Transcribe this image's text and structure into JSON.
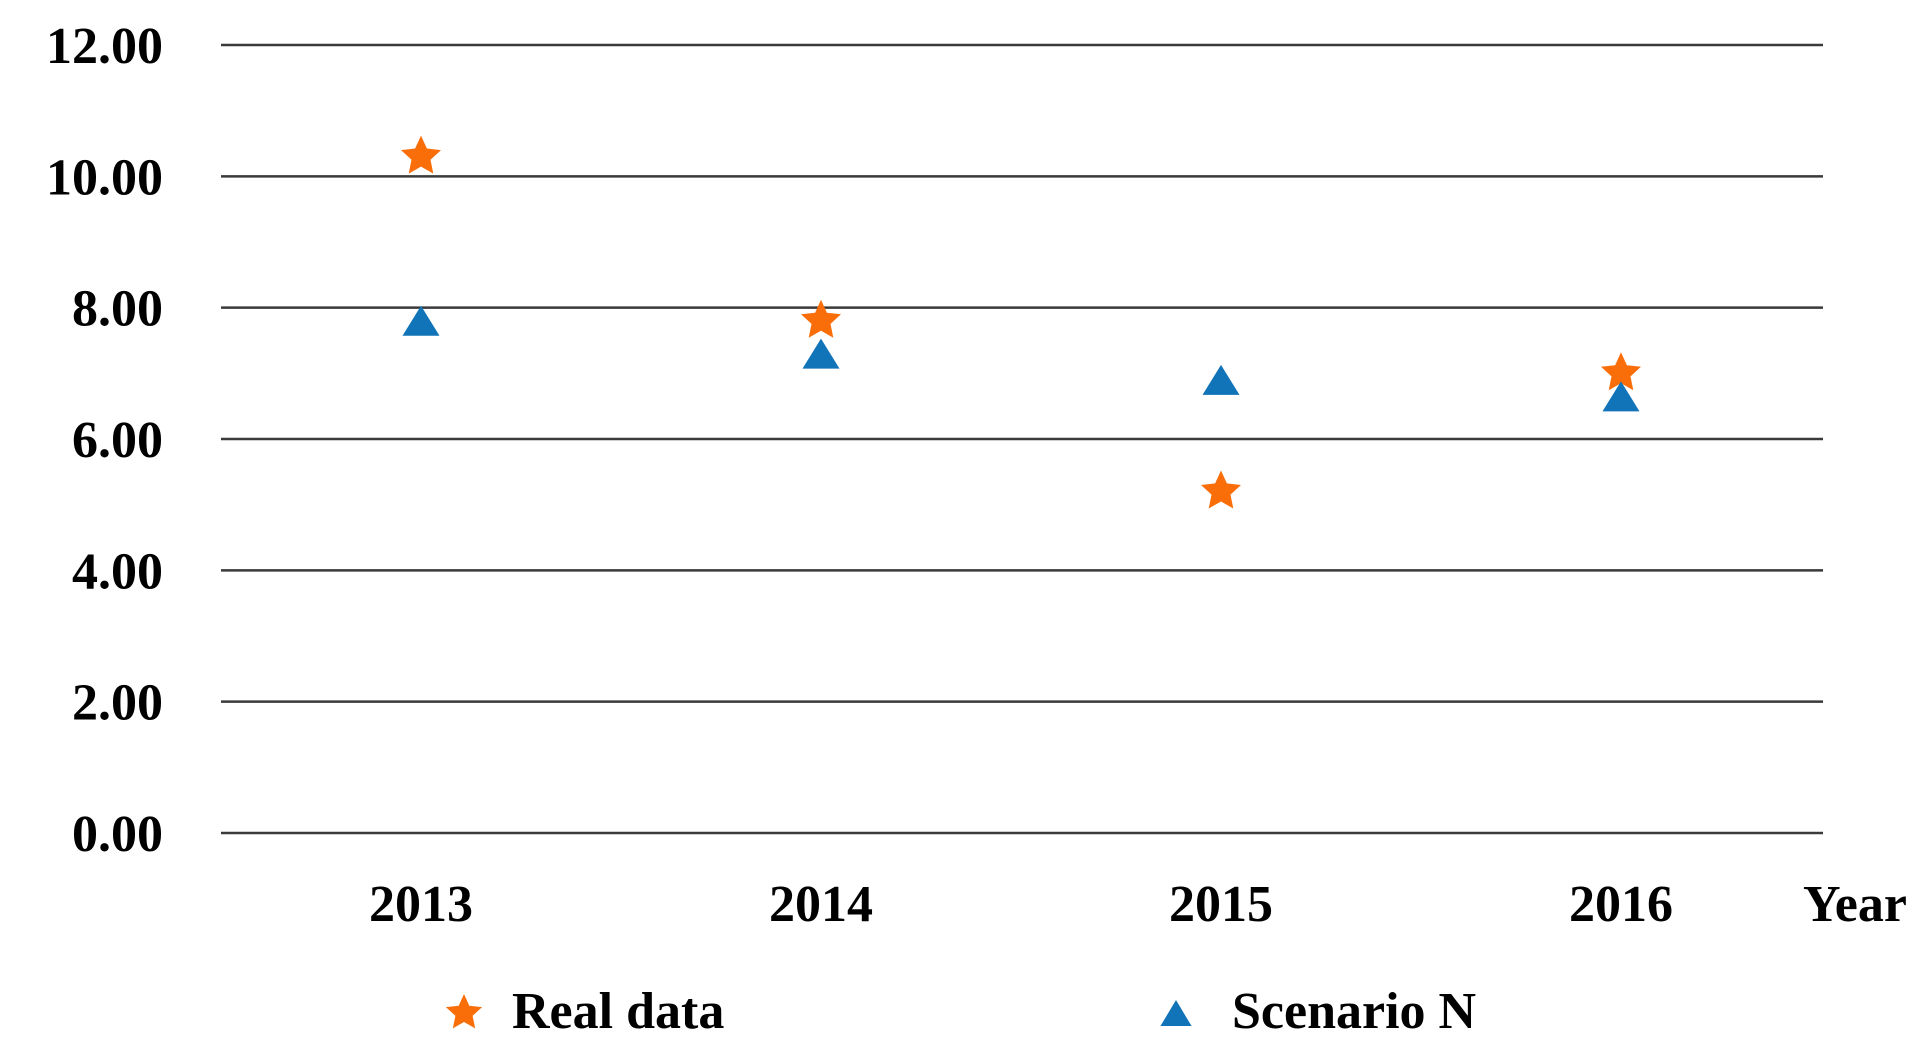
{
  "chart_data": {
    "type": "scatter",
    "title": "",
    "xlabel": "Year",
    "ylabel": "",
    "x": [
      2013,
      2014,
      2015,
      2016
    ],
    "xtick_labels": [
      "2013",
      "2014",
      "2015",
      "2016"
    ],
    "ytick_values": [
      0,
      2,
      4,
      6,
      8,
      10,
      12
    ],
    "ytick_labels": [
      "0.00",
      "2.00",
      "4.00",
      "6.00",
      "8.00",
      "10.00",
      "12.00"
    ],
    "ylim": [
      0,
      12
    ],
    "grid": "horizontal-only",
    "legend_position": "bottom",
    "series": [
      {
        "name": "Real data",
        "marker": "star",
        "color": "#FA6E0A",
        "values": [
          10.3,
          7.8,
          5.2,
          7.0
        ]
      },
      {
        "name": "Scenario N",
        "marker": "triangle",
        "color": "#1173B8",
        "values": [
          7.8,
          7.3,
          6.9,
          6.65
        ]
      }
    ],
    "colors": {
      "background": "#FFFFFF",
      "gridline": "#3A3A3A",
      "text": "#000000"
    }
  }
}
